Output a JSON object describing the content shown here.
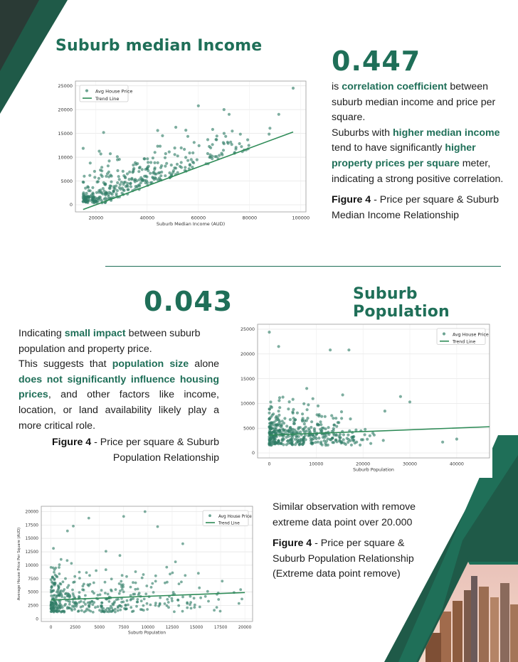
{
  "section1": {
    "title": "Suburb median Income",
    "value": "0.447",
    "desc_parts": [
      "is ",
      "correlation coefficient",
      " between suburb median income and price per square."
    ],
    "desc2_parts": [
      "Suburbs with ",
      "higher median income",
      " tend to have significantly ",
      "higher property prices per square",
      " meter, indicating a strong positive correlation."
    ],
    "caption_bold": "Figure 4",
    "caption_text": " - Price per square & Suburb Median Income Relationship"
  },
  "section2": {
    "title": "Suburb Population",
    "value": "0.043",
    "desc_parts": [
      "Indicating ",
      "small impact",
      " between suburb population and property price."
    ],
    "desc2_parts": [
      "This suggests that ",
      "population size",
      " alone ",
      "does not significantly influence housing prices",
      ", and other factors like income, location, or land availability likely play a more critical role."
    ],
    "caption_bold": "Figure 4",
    "caption_text": " - Price per square & Suburb Population Relationship"
  },
  "section3": {
    "desc": "Similar observation with remove extreme data point over 20.000",
    "caption_bold": "Figure 4",
    "caption_text": " - Price per square & Suburb Population Relationship (Extreme data point remove)"
  },
  "colors": {
    "brand": "#1f6f58",
    "dark": "#1f4a3d",
    "point": "#2f7d65",
    "trend": "#2e8b57"
  },
  "chart_data": [
    {
      "type": "scatter",
      "title": "",
      "xlabel": "Suburb Median Income (AUD)",
      "ylabel": "",
      "xlim": [
        12000,
        102000
      ],
      "ylim": [
        -1500,
        26000
      ],
      "xticks": [
        20000,
        40000,
        60000,
        80000,
        100000
      ],
      "yticks": [
        0,
        5000,
        10000,
        15000,
        20000,
        25000
      ],
      "legend": {
        "position": "top-left",
        "entries": [
          "Avg House Price",
          "Trend Line"
        ]
      },
      "trend": {
        "x": [
          15000,
          97000
        ],
        "y": [
          -1000,
          15300
        ]
      },
      "seed": 11,
      "n_points": 380,
      "cloud": {
        "xmin": 15000,
        "xmax": 97000,
        "slope": 0.2,
        "intercept": -2500,
        "spread": 3200
      },
      "highlights": [
        [
          97000,
          24500
        ],
        [
          60000,
          20800
        ],
        [
          70000,
          20000
        ],
        [
          72000,
          19000
        ],
        [
          23000,
          15200
        ],
        [
          46000,
          14500
        ]
      ]
    },
    {
      "type": "scatter",
      "title": "",
      "xlabel": "Suburb Population",
      "ylabel": "",
      "xlim": [
        -2500,
        47000
      ],
      "ylim": [
        -1000,
        26000
      ],
      "xticks": [
        0,
        10000,
        20000,
        30000,
        40000
      ],
      "yticks": [
        0,
        5000,
        10000,
        15000,
        20000,
        25000
      ],
      "legend": {
        "position": "top-right",
        "entries": [
          "Avg House Price",
          "Trend Line"
        ]
      },
      "trend": {
        "x": [
          0,
          47000
        ],
        "y": [
          3600,
          5300
        ]
      },
      "seed": 23,
      "n_points": 420,
      "cloud": {
        "xmin": 0,
        "xmax": 25000,
        "slope": 0,
        "intercept": 3500,
        "spread": 3500
      },
      "highlights": [
        [
          0,
          24400
        ],
        [
          2000,
          21500
        ],
        [
          13000,
          20800
        ],
        [
          17000,
          20800
        ],
        [
          28000,
          11400
        ],
        [
          30000,
          10300
        ],
        [
          37000,
          2200
        ],
        [
          40000,
          2800
        ]
      ]
    },
    {
      "type": "scatter",
      "title": "",
      "xlabel": "Suburb Population",
      "ylabel": "Average House Price Per Square (AUD)",
      "xlim": [
        -1000,
        20800
      ],
      "ylim": [
        -500,
        21000
      ],
      "xticks": [
        0,
        2500,
        5000,
        7500,
        10000,
        12500,
        15000,
        17500,
        20000
      ],
      "yticks": [
        0,
        2500,
        5000,
        7500,
        10000,
        12500,
        15000,
        17500,
        20000
      ],
      "legend": {
        "position": "top-right",
        "entries": [
          "Avg House Price",
          "Trend Line"
        ]
      },
      "trend": {
        "x": [
          0,
          20000
        ],
        "y": [
          3500,
          4900
        ]
      },
      "seed": 37,
      "n_points": 420,
      "cloud": {
        "xmin": 0,
        "xmax": 20000,
        "slope": 0,
        "intercept": 3200,
        "spread": 3600
      },
      "highlights": [
        [
          9700,
          20000
        ],
        [
          7500,
          19100
        ],
        [
          3900,
          18800
        ],
        [
          2300,
          17300
        ],
        [
          1700,
          16400
        ],
        [
          11000,
          17200
        ],
        [
          13600,
          14000
        ],
        [
          19700,
          3700
        ]
      ]
    }
  ]
}
